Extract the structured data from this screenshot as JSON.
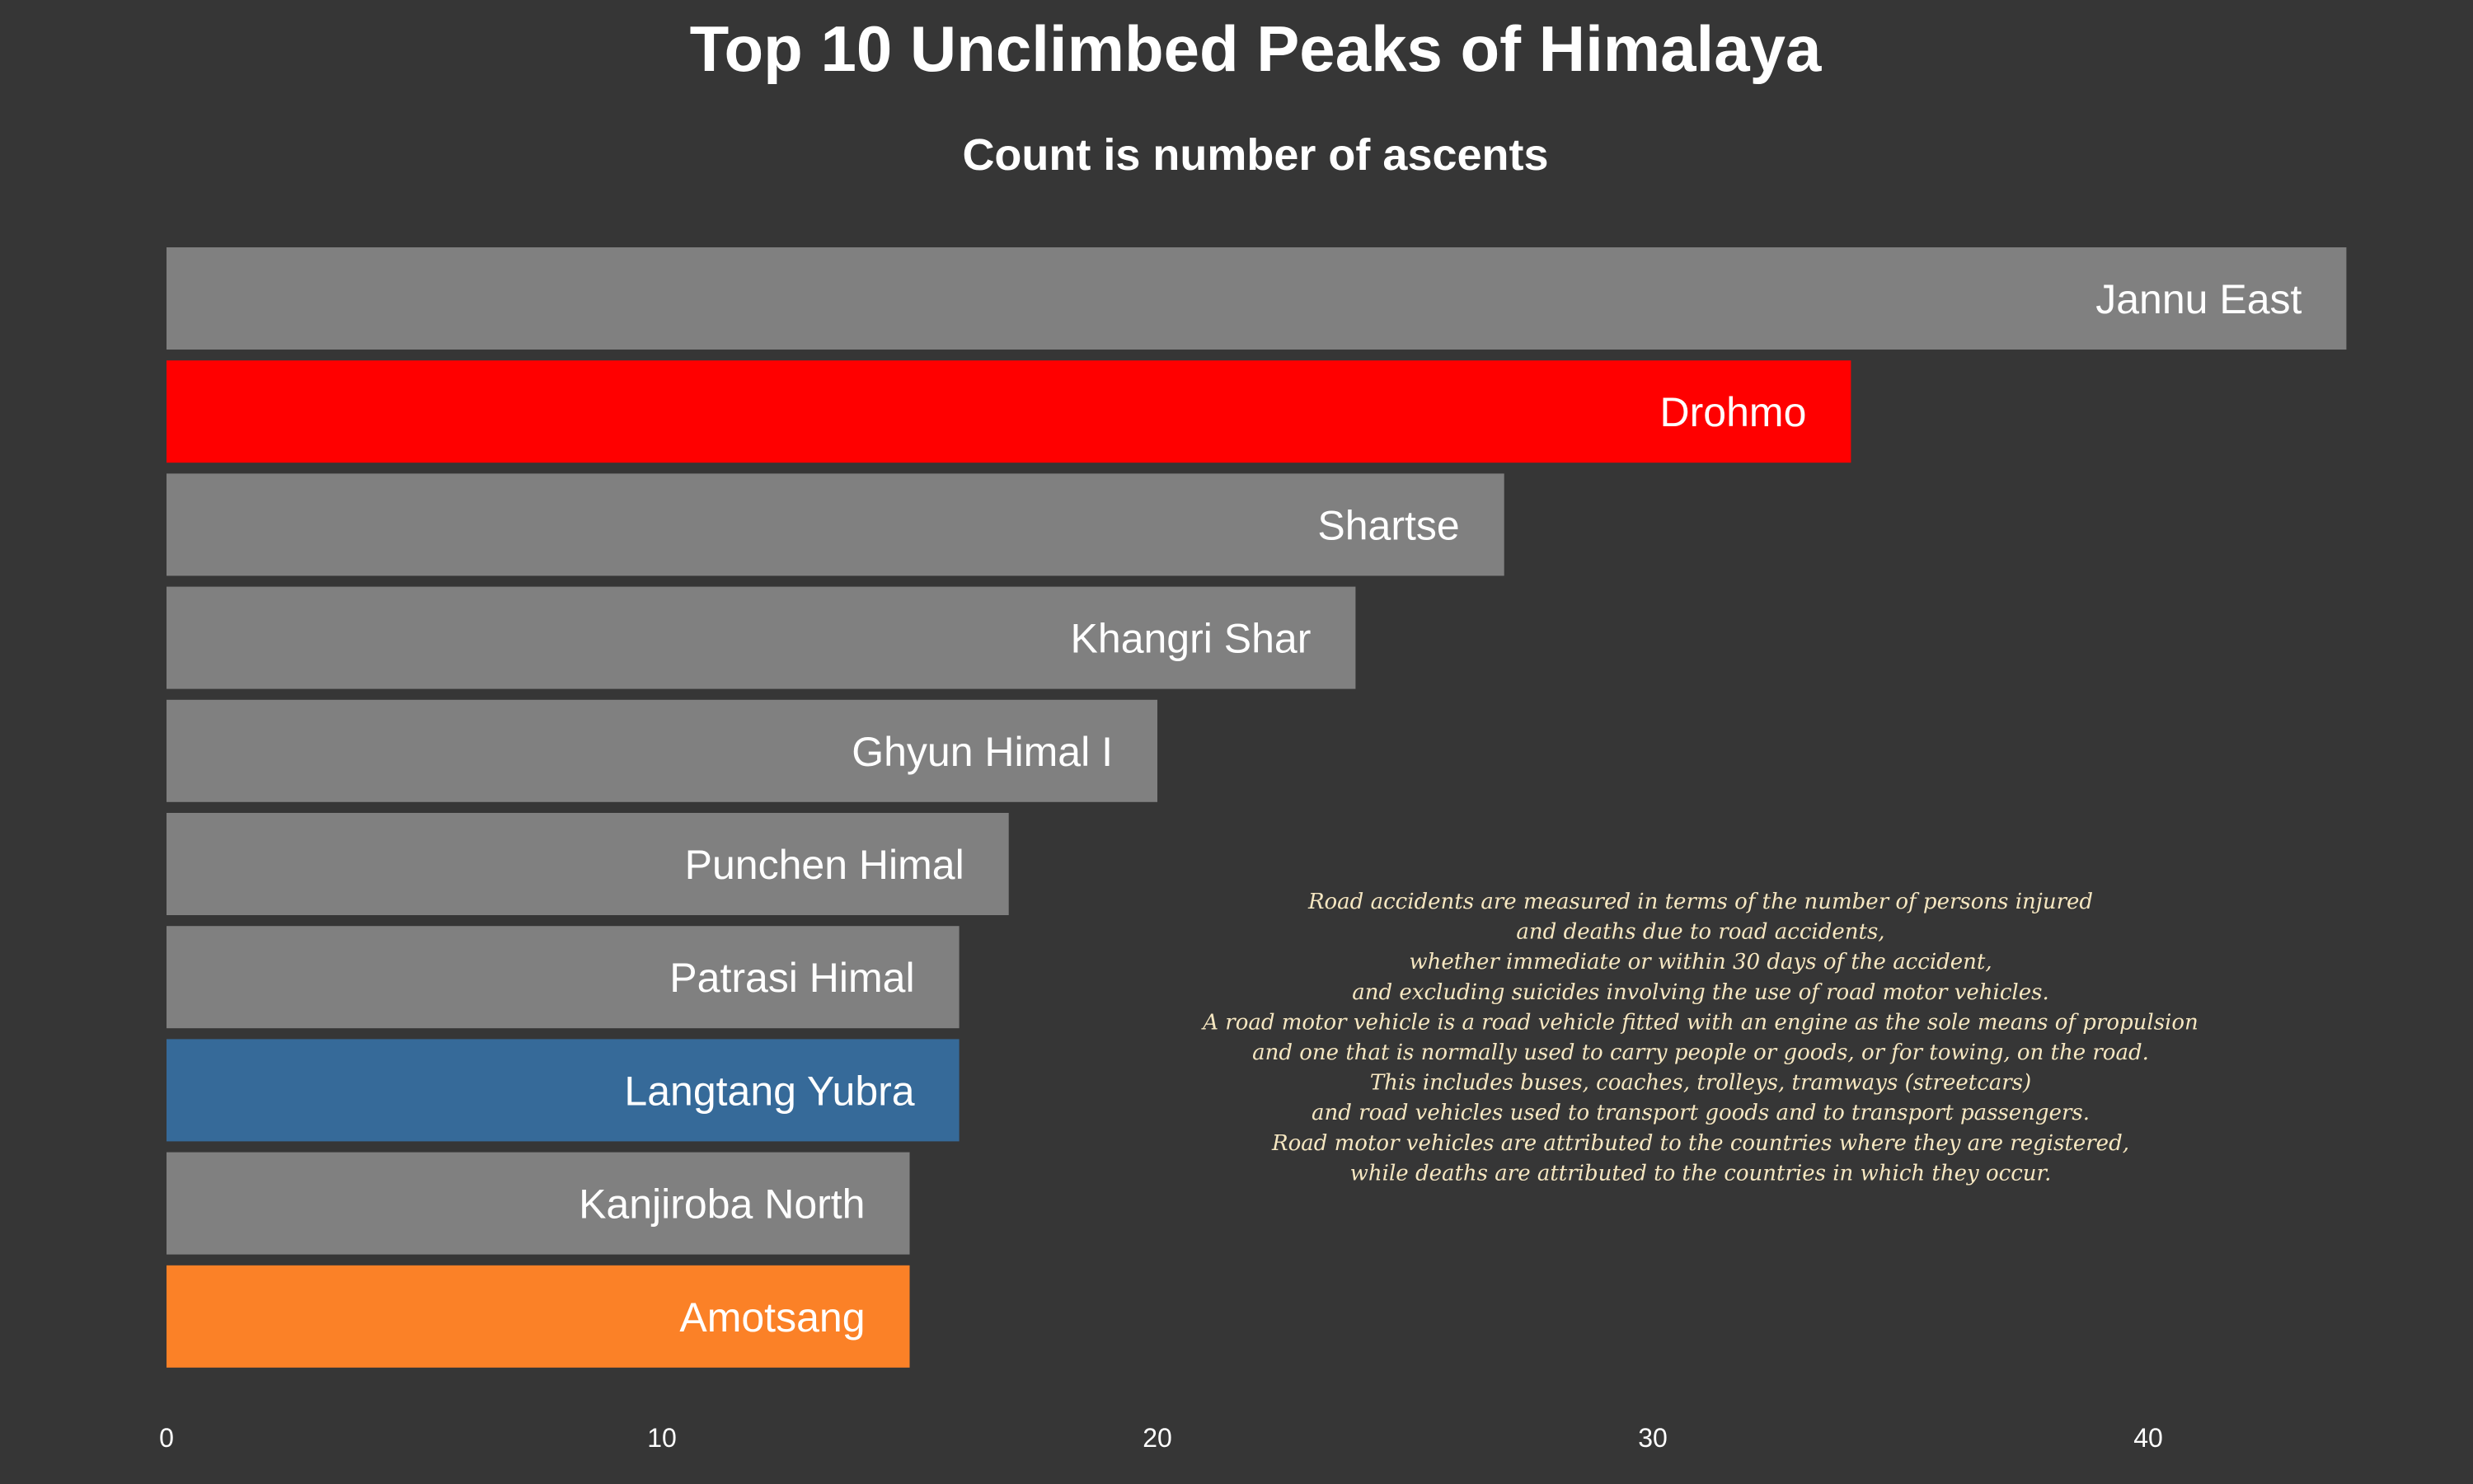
{
  "chart_data": {
    "type": "bar",
    "orientation": "horizontal",
    "title": "Top 10 Unclimbed Peaks of Himalaya",
    "subtitle": "Count is number of ascents",
    "xlabel": "",
    "ylabel": "",
    "xlim": [
      0,
      45
    ],
    "grid": false,
    "x_ticks": [
      0,
      10,
      20,
      30,
      40
    ],
    "categories": [
      "Jannu East",
      "Drohmo",
      "Shartse",
      "Khangri Shar",
      "Ghyun Himal I",
      "Punchen Himal",
      "Patrasi Himal",
      "Langtang Yubra",
      "Kanjiroba North",
      "Amotsang"
    ],
    "values": [
      44,
      34,
      27,
      24,
      20,
      17,
      16,
      16,
      15,
      15
    ],
    "bar_colors": [
      "#808080",
      "#ff0000",
      "#808080",
      "#808080",
      "#808080",
      "#808080",
      "#808080",
      "#366a99",
      "#808080",
      "#fb8127"
    ],
    "annotation": [
      "Road accidents are measured in terms of the number of persons injured",
      "and deaths due to road accidents,",
      "whether immediate or within 30 days of the accident,",
      "and excluding suicides involving the use of road motor vehicles.",
      "A road motor vehicle is a road vehicle fitted with an engine as the sole means of propulsion",
      "and one that is normally used to carry people or goods, or for towing, on the road.",
      "This includes buses, coaches, trolleys, tramways (streetcars)",
      "and road vehicles used to transport goods and to transport passengers.",
      "Road motor vehicles are attributed to the countries where they are registered,",
      "while deaths are attributed to the countries in which they occur."
    ]
  },
  "colors": {
    "background": "#363636",
    "text": "#ffffff",
    "annotation_text": "#f6e7c1"
  }
}
